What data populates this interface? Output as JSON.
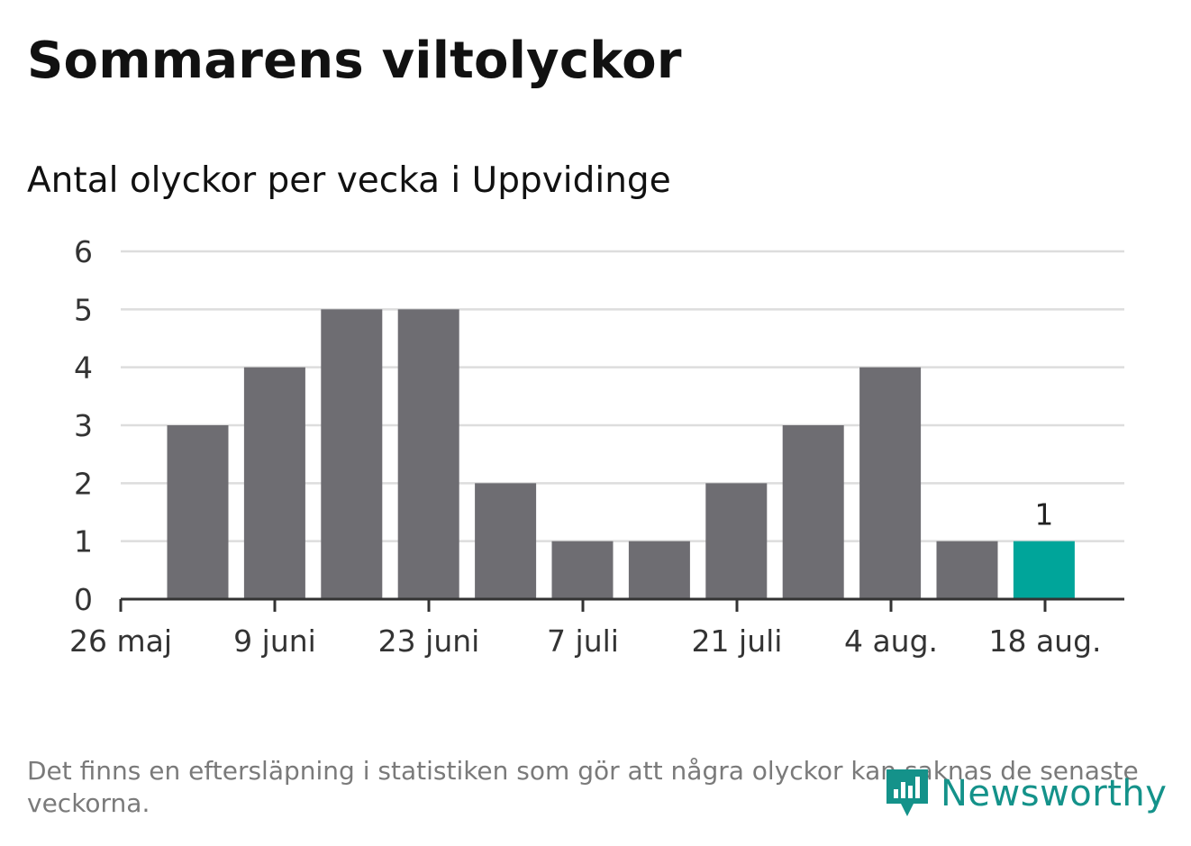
{
  "header": {
    "title": "Sommarens viltolyckor",
    "subtitle": "Antal olyckor per vecka i Uppvidinge"
  },
  "chart_data": {
    "type": "bar",
    "title": "Sommarens viltolyckor",
    "subtitle": "Antal olyckor per vecka i Uppvidinge",
    "xlabel": "",
    "ylabel": "",
    "values": [
      3,
      4,
      5,
      5,
      2,
      1,
      1,
      2,
      3,
      4,
      1,
      1
    ],
    "ylim": [
      0,
      6
    ],
    "yticks": [
      "0",
      "1",
      "2",
      "3",
      "4",
      "5",
      "6"
    ],
    "xticks": [
      "26 maj",
      "9 juni",
      "23 juni",
      "7 juli",
      "21 juli",
      "4 aug.",
      "18 aug."
    ],
    "highlight_index": 11,
    "highlight_label": "1",
    "grid": true,
    "legend": "none",
    "colors": {
      "bar": "#6e6d72",
      "highlight": "#00a59a",
      "grid": "#dddddd",
      "axis": "#333333"
    }
  },
  "footer": {
    "note": "Det finns en eftersläpning i statistiken som gör att några olyckor kan saknas de senaste veckorna.",
    "brand_name": "Newsworthy",
    "brand_icon": "newsworthy-logo-icon"
  }
}
